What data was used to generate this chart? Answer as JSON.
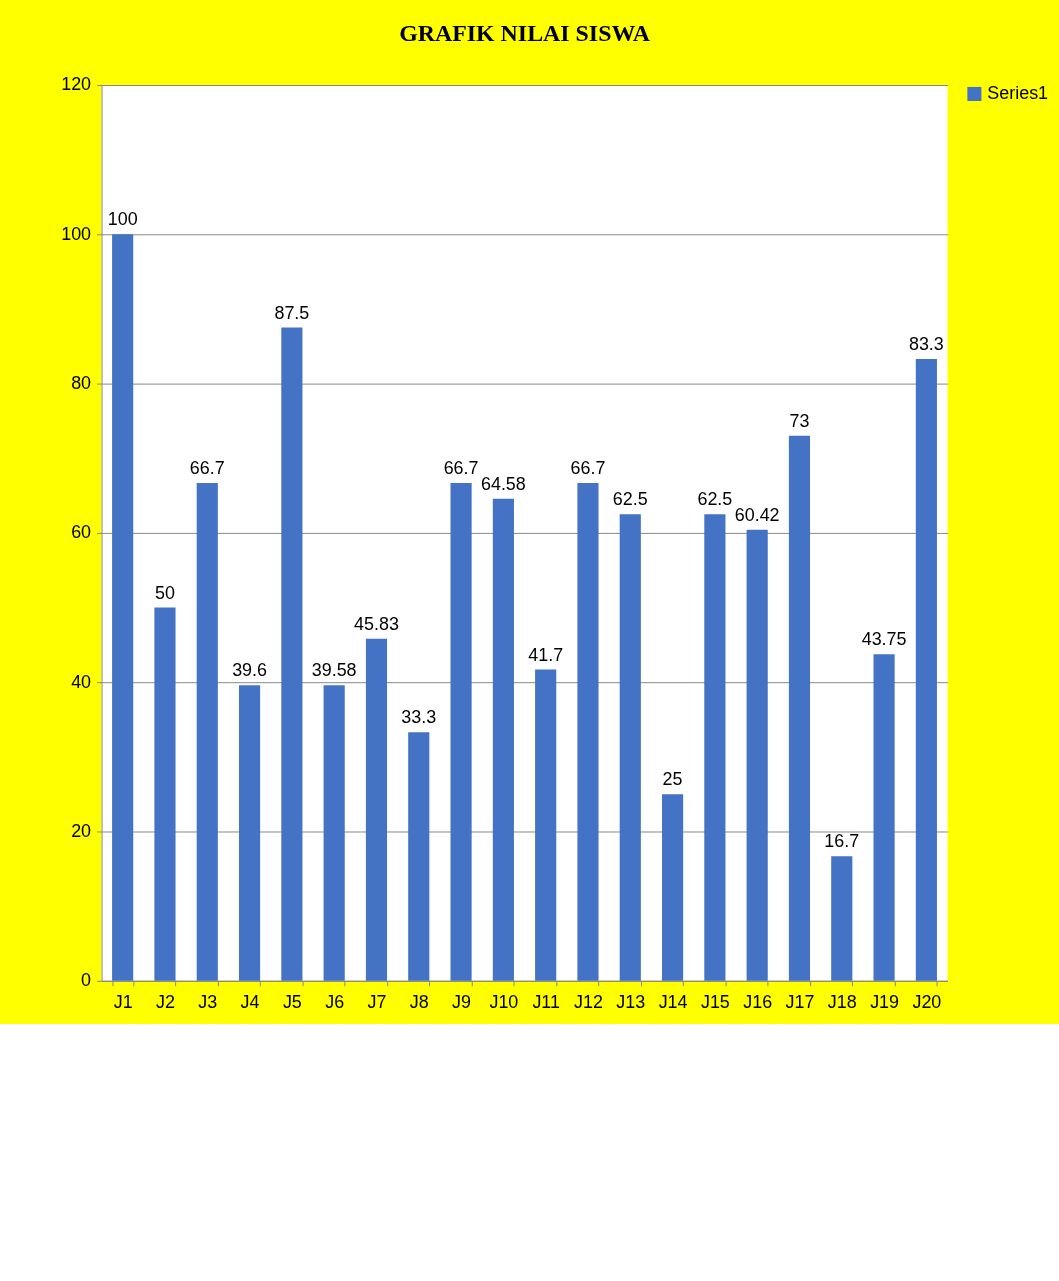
{
  "chart_data": {
    "type": "bar",
    "title": "GRAFIK NILAI SISWA",
    "categories": [
      "J1",
      "J2",
      "J3",
      "J4",
      "J5",
      "J6",
      "J7",
      "J8",
      "J9",
      "J10",
      "J11",
      "J12",
      "J13",
      "J14",
      "J15",
      "J16",
      "J17",
      "J18",
      "J19",
      "J20"
    ],
    "series": [
      {
        "name": "Series1",
        "color": "#4472c4",
        "values": [
          100,
          50,
          66.7,
          39.6,
          87.5,
          39.58,
          45.83,
          33.3,
          66.7,
          64.58,
          41.7,
          66.7,
          62.5,
          25,
          62.5,
          60.42,
          73,
          16.7,
          43.75,
          83.3
        ]
      }
    ],
    "ylim": [
      0,
      120
    ],
    "yticks": [
      0,
      20,
      40,
      60,
      80,
      100,
      120
    ],
    "grid": "y",
    "legend": "right",
    "data_labels": true
  }
}
